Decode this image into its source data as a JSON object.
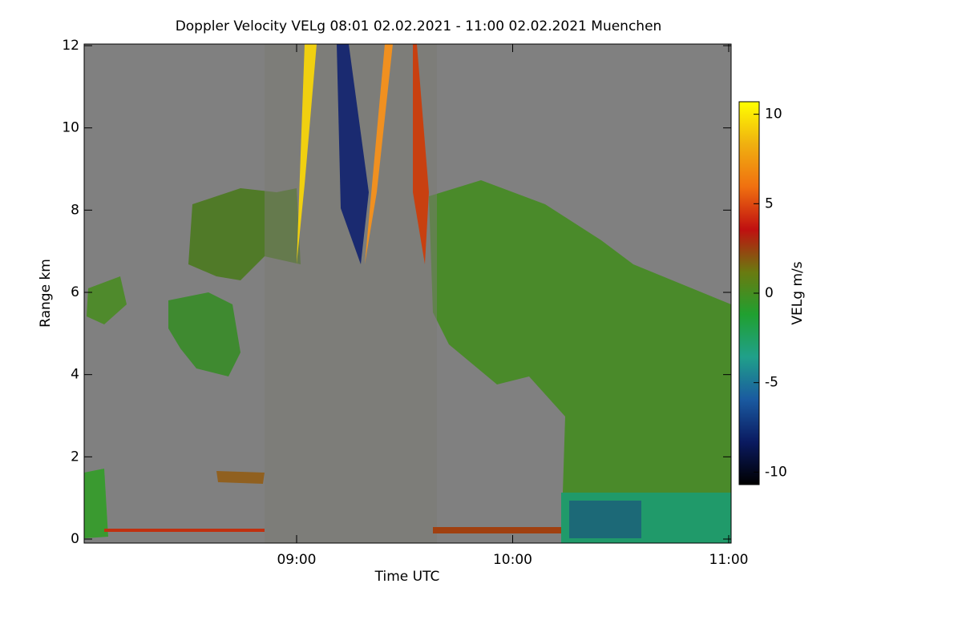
{
  "chart_data": {
    "type": "heatmap",
    "title": "Doppler Velocity VELg   08:01 02.02.2021 - 11:00 02.02.2021 Muenchen",
    "x_label": "Time UTC",
    "y_label": "Range km",
    "xlim": [
      8.0167,
      11.0
    ],
    "xticks": [
      {
        "value": 9,
        "label": "09:00"
      },
      {
        "value": 10,
        "label": "10:00"
      },
      {
        "value": 11,
        "label": "11:00"
      }
    ],
    "ylim": [
      0,
      12
    ],
    "yticks": [
      0,
      2,
      4,
      6,
      8,
      10,
      12
    ],
    "colorbar": {
      "label": "VELg m/s",
      "lim": [
        -10.7,
        10.7
      ],
      "ticks": [
        10,
        5,
        0,
        -5,
        -10
      ],
      "colormap": [
        "#000000",
        "#0a1a60",
        "#1a5aa0",
        "#20a08a",
        "#20a030",
        "#6a7a10",
        "#c01010",
        "#f07010",
        "#f0b010",
        "#ffff00"
      ]
    }
  }
}
